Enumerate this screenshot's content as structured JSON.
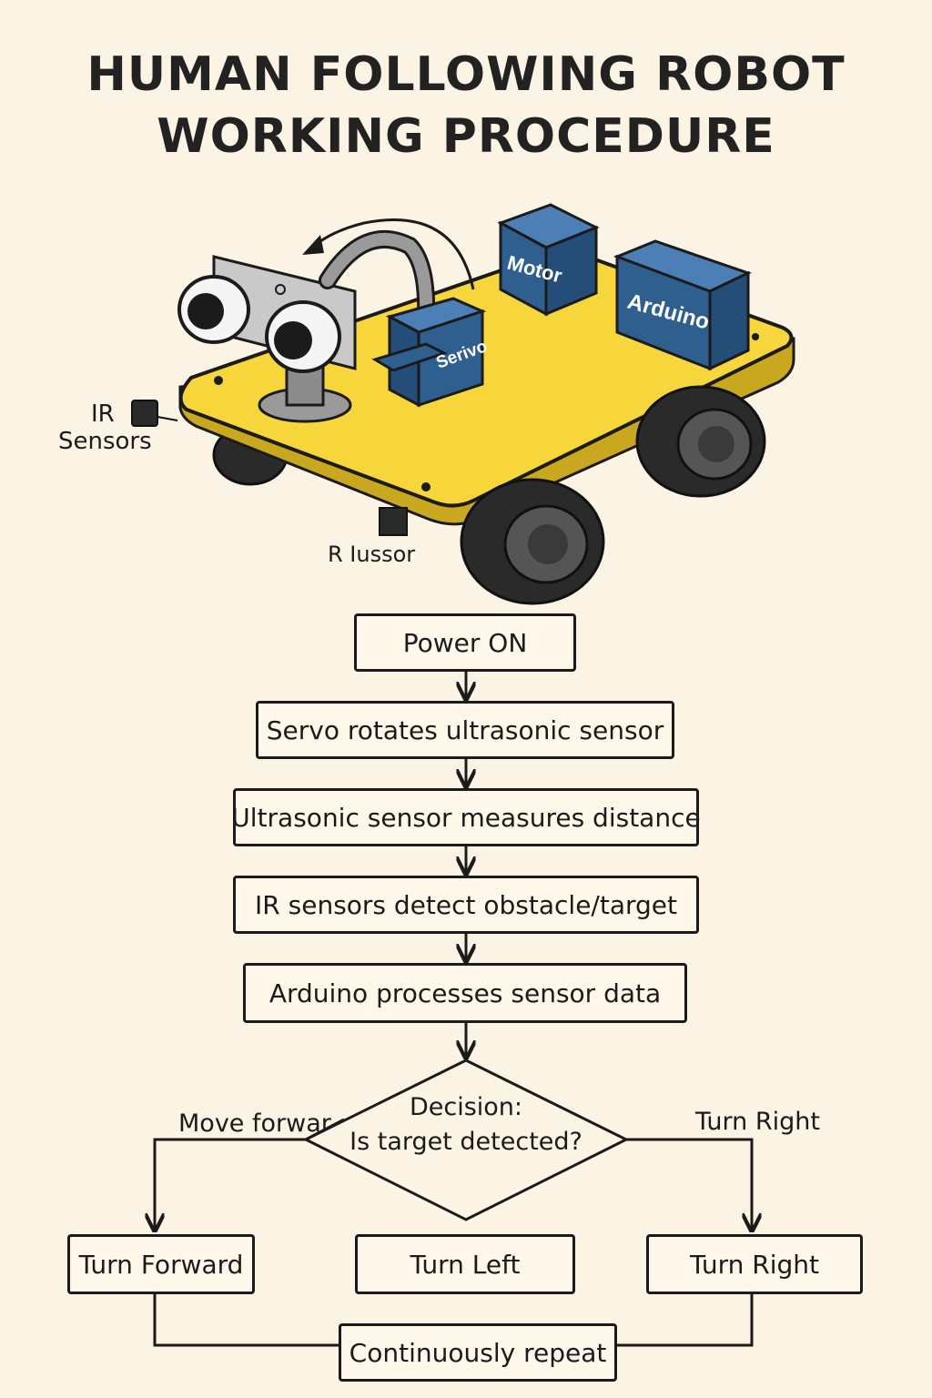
{
  "title": {
    "line1": "HUMAN FOLLOWING ROBOT",
    "line2": "WORKING PROCEDURE"
  },
  "illustration": {
    "components": {
      "motor": "Motor",
      "arduino": "Arduino",
      "servo": "Serivo"
    },
    "labels": {
      "ir_line1": "IR",
      "ir_line2": "Sensors",
      "bottom": "R Iussor"
    },
    "colors": {
      "chassis": "#f6d63a",
      "module": "#2f5f8f",
      "wheel": "#2a2a2a"
    }
  },
  "flowchart": {
    "steps": [
      "Power ON",
      "Servo rotates ultrasonic sensor",
      "Ultrasonic sensor measures distance",
      "IR sensors detect obstacle/target",
      "Arduino processes sensor data"
    ],
    "decision": {
      "line1": "Decision:",
      "line2": "Is target detected?",
      "left_branch": "Move forwar",
      "right_branch": "Turn Right"
    },
    "actions": {
      "forward": "Turn Forward",
      "left": "Turn Left",
      "right": "Turn Right"
    },
    "loop": "Continuously repeat"
  }
}
